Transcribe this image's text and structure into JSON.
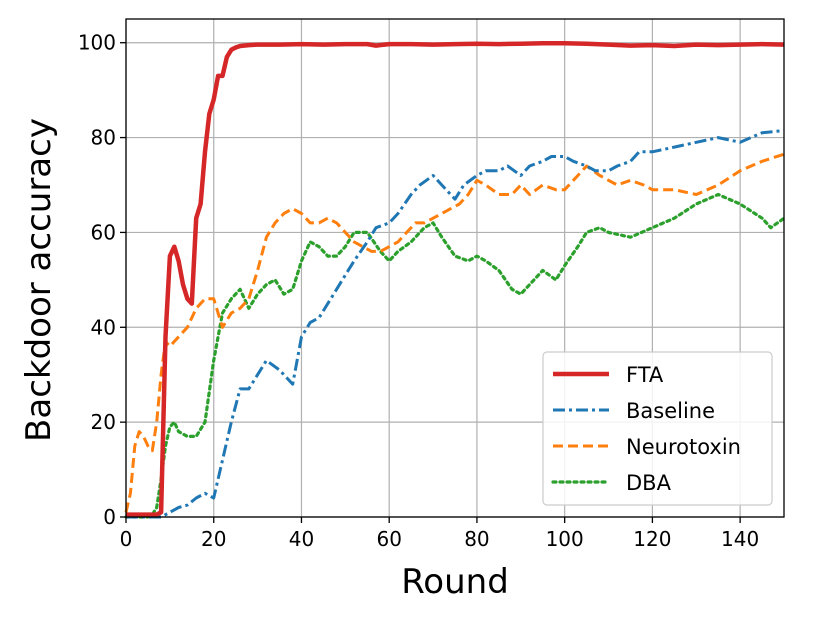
{
  "chart_data": {
    "type": "line",
    "title": "",
    "xlabel": "Round",
    "ylabel": "Backdoor accuracy",
    "xlim": [
      0,
      150
    ],
    "ylim": [
      0,
      105
    ],
    "xticks": [
      0,
      20,
      40,
      60,
      80,
      100,
      120,
      140
    ],
    "yticks": [
      0,
      20,
      40,
      60,
      80,
      100
    ],
    "grid": true,
    "legend_position": "bottom-right",
    "series": [
      {
        "name": "FTA",
        "color": "#d62728",
        "style": "solid",
        "x": [
          0,
          7,
          8,
          9,
          10,
          11,
          12,
          13,
          14,
          15,
          16,
          17,
          18,
          19,
          20,
          21,
          22,
          23,
          24,
          25,
          26,
          28,
          30,
          35,
          40,
          45,
          50,
          55,
          57,
          60,
          65,
          70,
          75,
          80,
          85,
          90,
          95,
          100,
          105,
          110,
          115,
          120,
          125,
          130,
          135,
          140,
          145,
          150
        ],
        "y": [
          0.5,
          0.5,
          1,
          38,
          55,
          57,
          54,
          49,
          46,
          45,
          63,
          66,
          77,
          85,
          88,
          93,
          93,
          97,
          98.5,
          99,
          99.3,
          99.5,
          99.6,
          99.6,
          99.7,
          99.6,
          99.7,
          99.7,
          99.4,
          99.7,
          99.7,
          99.6,
          99.7,
          99.8,
          99.7,
          99.8,
          99.9,
          99.9,
          99.8,
          99.6,
          99.4,
          99.5,
          99.3,
          99.6,
          99.5,
          99.6,
          99.7,
          99.6
        ]
      },
      {
        "name": "Baseline",
        "color": "#1f77b4",
        "style": "dashdot",
        "x": [
          0,
          8,
          10,
          12,
          14,
          16,
          18,
          20,
          22,
          24,
          26,
          28,
          30,
          32,
          35,
          38,
          40,
          42,
          44,
          46,
          48,
          50,
          52,
          55,
          57,
          60,
          62,
          65,
          67,
          70,
          72,
          75,
          77,
          80,
          82,
          85,
          87,
          90,
          92,
          95,
          97,
          100,
          102,
          105,
          107,
          110,
          112,
          115,
          117,
          120,
          125,
          130,
          135,
          140,
          145,
          150
        ],
        "y": [
          0,
          0,
          1,
          2,
          2.5,
          4,
          5,
          4,
          12,
          20,
          27,
          27,
          30,
          33,
          31,
          28,
          38,
          41,
          42,
          45,
          48,
          51,
          54,
          58,
          61,
          62,
          64,
          68,
          70,
          72,
          70,
          67,
          70,
          72,
          73,
          73,
          74,
          72,
          74,
          75,
          76,
          76,
          75,
          74,
          73,
          73,
          74,
          75,
          77,
          77,
          78,
          79,
          80,
          79,
          81,
          81.5
        ]
      },
      {
        "name": "Neurotoxin",
        "color": "#ff7f0e",
        "style": "dashed",
        "x": [
          0,
          1,
          2,
          3,
          4,
          5,
          6,
          7,
          8,
          9,
          10,
          12,
          14,
          16,
          18,
          20,
          22,
          24,
          26,
          28,
          30,
          32,
          34,
          36,
          38,
          40,
          42,
          44,
          46,
          48,
          50,
          52,
          54,
          56,
          58,
          60,
          62,
          64,
          66,
          68,
          70,
          72,
          74,
          76,
          78,
          80,
          82,
          85,
          88,
          90,
          92,
          95,
          98,
          100,
          102,
          105,
          108,
          110,
          112,
          115,
          118,
          120,
          125,
          130,
          135,
          140,
          145,
          150
        ],
        "y": [
          1,
          5,
          15,
          18,
          17,
          15,
          14,
          20,
          30,
          37,
          36,
          38,
          40,
          44,
          46,
          46,
          40,
          43,
          44,
          46,
          52,
          59,
          62,
          64,
          65,
          64,
          62,
          62,
          63,
          62,
          60,
          58,
          57,
          56,
          56,
          57,
          58,
          60,
          62,
          62,
          63,
          64,
          65,
          66,
          68,
          71,
          70,
          68,
          68,
          70,
          68,
          70,
          69,
          69,
          71,
          74,
          72,
          71,
          70,
          71,
          70,
          69,
          69,
          68,
          70,
          73,
          75,
          76.5
        ]
      },
      {
        "name": "DBA",
        "color": "#2ca02c",
        "style": "dotted",
        "x": [
          0,
          5,
          6,
          7,
          8,
          9,
          10,
          11,
          12,
          14,
          16,
          18,
          20,
          22,
          24,
          26,
          28,
          30,
          32,
          34,
          36,
          38,
          40,
          42,
          44,
          46,
          48,
          50,
          52,
          55,
          58,
          60,
          62,
          65,
          68,
          70,
          72,
          75,
          78,
          80,
          82,
          85,
          88,
          90,
          93,
          95,
          98,
          100,
          103,
          105,
          108,
          110,
          115,
          120,
          125,
          130,
          135,
          140,
          145,
          147,
          150
        ],
        "y": [
          0,
          0,
          0.5,
          2,
          8,
          15,
          19,
          20,
          18,
          17,
          17,
          20,
          33,
          43,
          46,
          48,
          44,
          47,
          49,
          50,
          47,
          48,
          54,
          58,
          57,
          55,
          55,
          57,
          60,
          60,
          56,
          54,
          56,
          58,
          61,
          62,
          59,
          55,
          54,
          55,
          54,
          52,
          48,
          47,
          50,
          52,
          50,
          53,
          57,
          60,
          61,
          60,
          59,
          61,
          63,
          66,
          68,
          66,
          63,
          61,
          63
        ]
      }
    ]
  }
}
